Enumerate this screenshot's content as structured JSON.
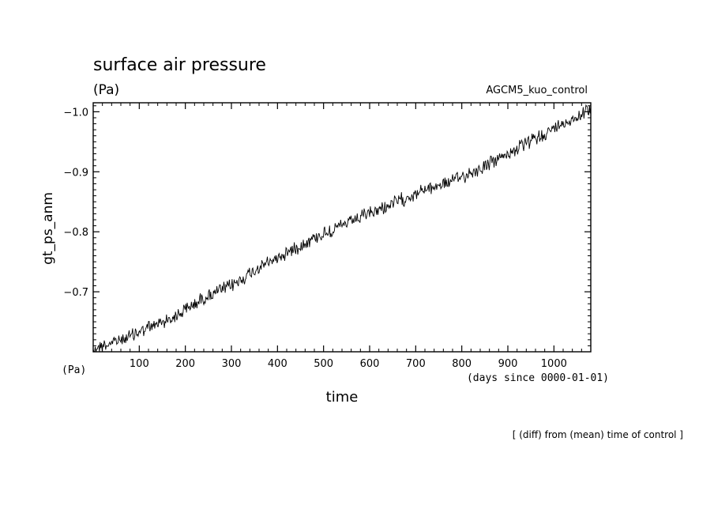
{
  "chart_data": {
    "type": "line",
    "title": "surface air pressure",
    "title_units": "(Pa)",
    "experiment": "AGCM5_kuo_control",
    "ylabel": "gt_ps_anm",
    "xlabel": "time",
    "x_units_label": "(days since 0000-01-01)",
    "y_units_label": "(Pa)",
    "footnote": "[ (diff) from (mean) time of control ]",
    "xlim": [
      0,
      1080
    ],
    "ylim": [
      -0.6,
      -1.015
    ],
    "x_ticks": [
      100,
      200,
      300,
      400,
      500,
      600,
      700,
      800,
      900,
      1000
    ],
    "x_tick_labels": [
      "100",
      "200",
      "300",
      "400",
      "500",
      "600",
      "700",
      "800",
      "900",
      "1000"
    ],
    "y_ticks": [
      -1.0,
      -0.9,
      -0.8,
      -0.7
    ],
    "y_tick_labels": [
      "-1.0",
      "-0.9",
      "-0.8",
      "-0.7"
    ],
    "series": [
      {
        "name": "gt_ps_anm",
        "x": [
          0,
          60,
          120,
          180,
          240,
          300,
          360,
          420,
          480,
          540,
          600,
          660,
          720,
          780,
          840,
          900,
          960,
          1020,
          1080
        ],
        "y": [
          -0.605,
          -0.62,
          -0.64,
          -0.66,
          -0.69,
          -0.71,
          -0.74,
          -0.765,
          -0.79,
          -0.81,
          -0.83,
          -0.85,
          -0.87,
          -0.885,
          -0.905,
          -0.93,
          -0.955,
          -0.98,
          -1.005
        ],
        "noise_amplitude": 0.009
      }
    ]
  }
}
